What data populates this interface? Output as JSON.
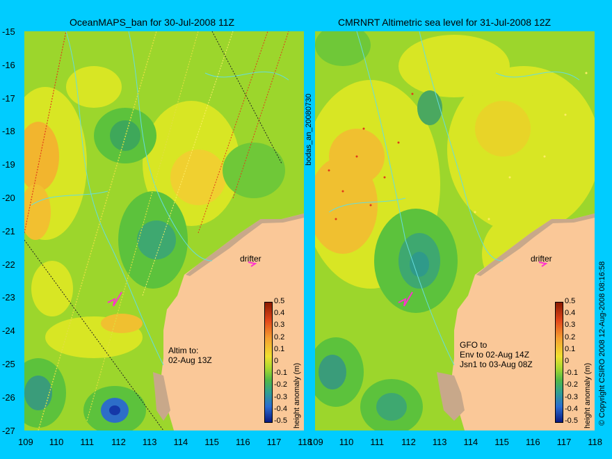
{
  "maps": [
    {
      "title": "OceanMAPS_ban for 30-Jul-2008 11Z",
      "drifter_label": "drifter",
      "pass_note": [
        "Altim to:",
        "02-Aug 13Z"
      ]
    },
    {
      "title": "CMRNRT Altimetric sea level  for 31-Jul-2008 12Z",
      "drifter_label": "drifter",
      "pass_note": [
        "GFO to",
        "Env to 02-Aug 14Z",
        "Jsn1 to 03-Aug 08Z"
      ]
    }
  ],
  "axes": {
    "lat_ticks": [
      "-15",
      "-16",
      "-17",
      "-18",
      "-19",
      "-20",
      "-21",
      "-22",
      "-23",
      "-24",
      "-25",
      "-26",
      "-27"
    ],
    "lon_ticks": [
      "109",
      "110",
      "111",
      "112",
      "113",
      "114",
      "115",
      "116",
      "117",
      "118"
    ]
  },
  "colorbar": {
    "label": "height anomaly (m)",
    "ticks": [
      "0.5",
      "0.4",
      "0.3",
      "0.2",
      "0.1",
      "0",
      "-0.1",
      "-0.2",
      "-0.3",
      "-0.4",
      "-0.5"
    ],
    "range": [
      -0.5,
      0.5
    ]
  },
  "middle_label": "bodas_an_20080730",
  "side_label": "© Copyright CSIRO 2008  12-Aug-2008 08:16:58",
  "colors": {
    "background": "#00ccff",
    "land": "#fac898",
    "coast_shelf": "#c8a88a",
    "contour": "#66dddd",
    "drifter": "#ff33cc"
  }
}
